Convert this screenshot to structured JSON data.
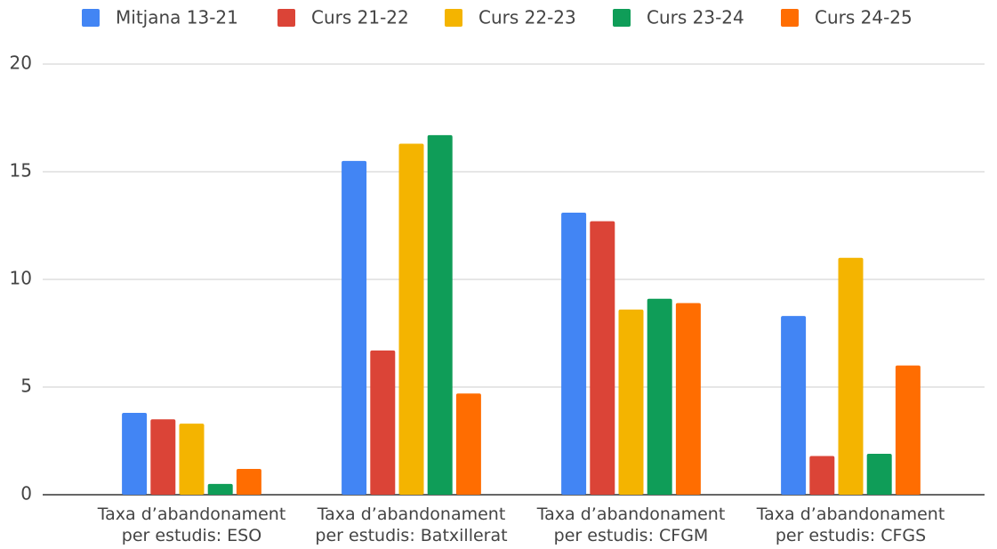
{
  "chart_data": {
    "type": "bar",
    "categories": [
      "Taxa d’abandonament\nper estudis: ESO",
      "Taxa d’abandonament\nper estudis: Batxillerat",
      "Taxa d’abandonament\nper estudis: CFGM",
      "Taxa d’abandonament\nper estudis: CFGS"
    ],
    "series": [
      {
        "name": "Mitjana 13-21",
        "color": "#4285f4",
        "values": [
          3.8,
          15.5,
          13.1,
          8.3
        ]
      },
      {
        "name": "Curs 21-22",
        "color": "#db4437",
        "values": [
          3.5,
          6.7,
          12.7,
          1.8
        ]
      },
      {
        "name": "Curs 22-23",
        "color": "#f4b400",
        "values": [
          3.3,
          16.3,
          8.6,
          11.0
        ]
      },
      {
        "name": "Curs 23-24",
        "color": "#0f9d58",
        "values": [
          0.5,
          16.7,
          9.1,
          1.9
        ]
      },
      {
        "name": "Curs 24-25",
        "color": "#ff6d01",
        "values": [
          1.2,
          4.7,
          8.9,
          6.0
        ]
      }
    ],
    "ylim": [
      0,
      20
    ],
    "yticks": [
      0,
      5,
      10,
      15,
      20
    ],
    "grid": true,
    "legend": "top"
  }
}
